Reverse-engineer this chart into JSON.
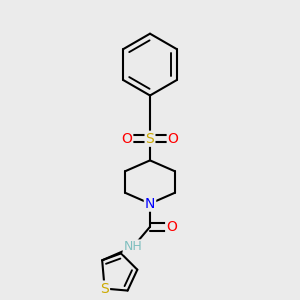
{
  "background_color": "#ebebeb",
  "bond_color": "#000000",
  "bond_width": 1.5,
  "atom_colors": {
    "N": "#0000ff",
    "O": "#ff0000",
    "S_sulfonyl": "#ccaa00",
    "S_thiophene": "#ccaa00",
    "NH": "#7fbfbf"
  },
  "figsize": [
    3.0,
    3.0
  ],
  "dpi": 100
}
